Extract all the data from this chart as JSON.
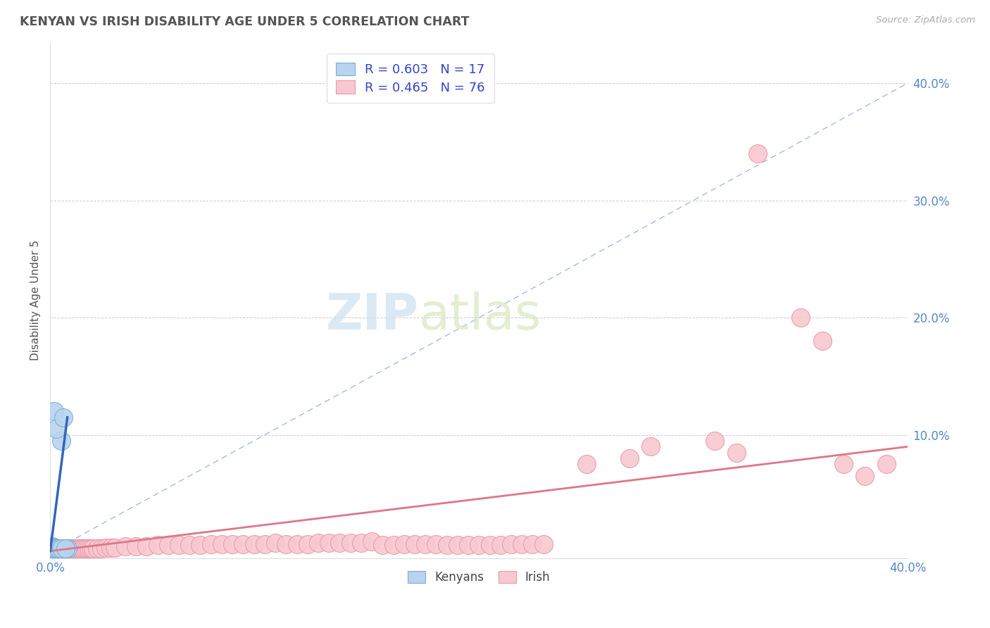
{
  "title": "KENYAN VS IRISH DISABILITY AGE UNDER 5 CORRELATION CHART",
  "source": "Source: ZipAtlas.com",
  "ylabel": "Disability Age Under 5",
  "kenyan_R": 0.603,
  "kenyan_N": 17,
  "irish_R": 0.465,
  "irish_N": 76,
  "kenyan_color": "#b8d4ee",
  "kenyan_edge_color": "#7aadd4",
  "irish_color": "#f8c8d0",
  "irish_edge_color": "#e899a8",
  "kenyan_line_color": "#3366bb",
  "irish_line_color": "#dd7788",
  "diagonal_color": "#aabbdd",
  "title_color": "#555555",
  "source_color": "#aaaaaa",
  "legend_color": "#3344cc",
  "tick_color": "#5588cc",
  "xlim": [
    0.0,
    0.4
  ],
  "ylim": [
    -0.005,
    0.435
  ],
  "kenyan_points_x": [
    0.001,
    0.002,
    0.003,
    0.004,
    0.005,
    0.006,
    0.007,
    0.008,
    0.001,
    0.002,
    0.002,
    0.003,
    0.003,
    0.004,
    0.005,
    0.006,
    0.007
  ],
  "kenyan_points_y": [
    0.005,
    0.004,
    0.003,
    0.003,
    0.095,
    0.003,
    0.003,
    0.003,
    0.003,
    0.12,
    0.003,
    0.105,
    0.003,
    0.003,
    0.003,
    0.115,
    0.003
  ],
  "irish_points": [
    [
      0.001,
      0.003
    ],
    [
      0.002,
      0.003
    ],
    [
      0.003,
      0.003
    ],
    [
      0.004,
      0.003
    ],
    [
      0.005,
      0.003
    ],
    [
      0.006,
      0.003
    ],
    [
      0.007,
      0.003
    ],
    [
      0.008,
      0.003
    ],
    [
      0.009,
      0.003
    ],
    [
      0.01,
      0.003
    ],
    [
      0.011,
      0.003
    ],
    [
      0.012,
      0.003
    ],
    [
      0.013,
      0.003
    ],
    [
      0.014,
      0.003
    ],
    [
      0.015,
      0.003
    ],
    [
      0.016,
      0.003
    ],
    [
      0.017,
      0.003
    ],
    [
      0.018,
      0.003
    ],
    [
      0.019,
      0.003
    ],
    [
      0.02,
      0.003
    ],
    [
      0.022,
      0.003
    ],
    [
      0.024,
      0.003
    ],
    [
      0.026,
      0.004
    ],
    [
      0.028,
      0.004
    ],
    [
      0.03,
      0.004
    ],
    [
      0.035,
      0.005
    ],
    [
      0.04,
      0.005
    ],
    [
      0.045,
      0.005
    ],
    [
      0.05,
      0.006
    ],
    [
      0.055,
      0.006
    ],
    [
      0.06,
      0.006
    ],
    [
      0.065,
      0.006
    ],
    [
      0.07,
      0.006
    ],
    [
      0.075,
      0.007
    ],
    [
      0.08,
      0.007
    ],
    [
      0.085,
      0.007
    ],
    [
      0.09,
      0.007
    ],
    [
      0.095,
      0.007
    ],
    [
      0.1,
      0.007
    ],
    [
      0.105,
      0.008
    ],
    [
      0.11,
      0.007
    ],
    [
      0.115,
      0.007
    ],
    [
      0.12,
      0.007
    ],
    [
      0.125,
      0.008
    ],
    [
      0.13,
      0.008
    ],
    [
      0.135,
      0.008
    ],
    [
      0.14,
      0.008
    ],
    [
      0.145,
      0.008
    ],
    [
      0.15,
      0.009
    ],
    [
      0.155,
      0.006
    ],
    [
      0.16,
      0.006
    ],
    [
      0.165,
      0.007
    ],
    [
      0.17,
      0.007
    ],
    [
      0.175,
      0.007
    ],
    [
      0.18,
      0.007
    ],
    [
      0.185,
      0.006
    ],
    [
      0.19,
      0.006
    ],
    [
      0.195,
      0.006
    ],
    [
      0.2,
      0.006
    ],
    [
      0.205,
      0.006
    ],
    [
      0.21,
      0.006
    ],
    [
      0.215,
      0.007
    ],
    [
      0.22,
      0.007
    ],
    [
      0.225,
      0.007
    ],
    [
      0.23,
      0.007
    ],
    [
      0.25,
      0.075
    ],
    [
      0.27,
      0.08
    ],
    [
      0.28,
      0.09
    ],
    [
      0.31,
      0.095
    ],
    [
      0.32,
      0.085
    ],
    [
      0.33,
      0.34
    ],
    [
      0.35,
      0.2
    ],
    [
      0.36,
      0.18
    ],
    [
      0.37,
      0.075
    ],
    [
      0.38,
      0.065
    ],
    [
      0.39,
      0.075
    ]
  ]
}
